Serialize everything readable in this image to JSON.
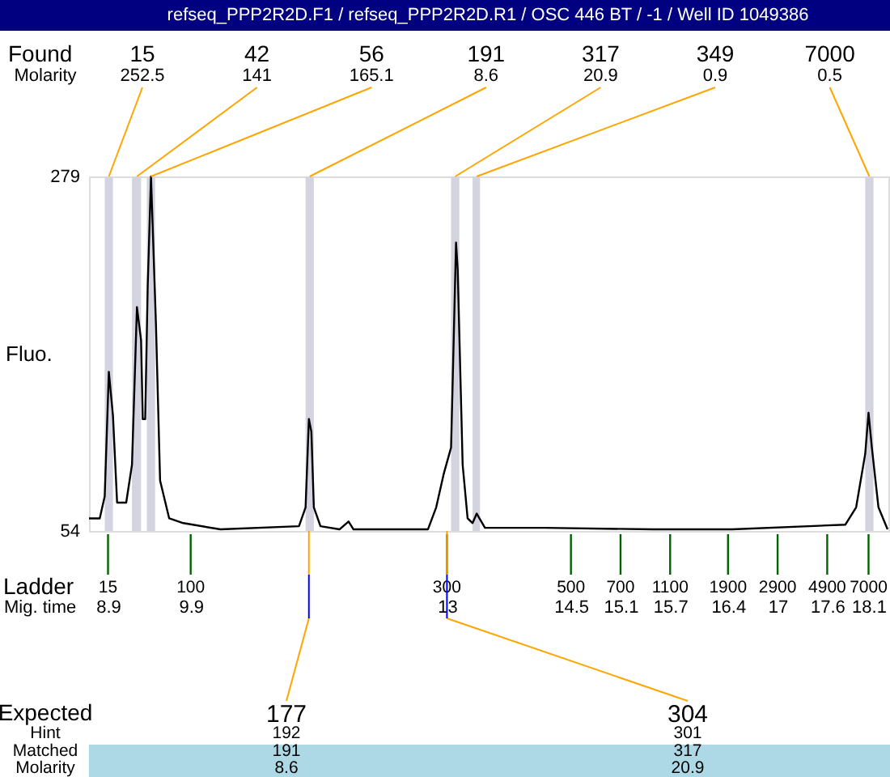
{
  "chart_data": {
    "type": "line",
    "title": "refseq_PPP2R2D.F1 / refseq_PPP2R2D.R1 / OSC 446 BT / -1 / Well ID 1049386",
    "xlabel": "Mig. time",
    "ylabel": "Fluo.",
    "xlim": [
      8.67,
      18.34
    ],
    "ylim": [
      54,
      279
    ],
    "yticks": [
      54,
      279
    ],
    "xticks": [
      8.9,
      9.9,
      13,
      14.5,
      15.1,
      15.7,
      16.4,
      17,
      17.6,
      18.1
    ],
    "series": [
      {
        "color": "#000000",
        "x": [
          8.67,
          8.8,
          8.86,
          8.91,
          8.96,
          9.01,
          9.12,
          9.19,
          9.25,
          9.3,
          9.32,
          9.35,
          9.38,
          9.42,
          9.48,
          9.53,
          9.64,
          9.81,
          10.26,
          11.21,
          11.29,
          11.33,
          11.36,
          11.39,
          11.47,
          11.7,
          11.81,
          11.87,
          12.77,
          12.87,
          12.96,
          13.05,
          13.11,
          13.13,
          13.19,
          13.25,
          13.31,
          13.36,
          13.46,
          14.18,
          15.48,
          16.45,
          17.82,
          17.95,
          18.06,
          18.1,
          18.14,
          18.22,
          18.33
        ],
        "values": [
          62,
          62,
          76,
          155,
          127,
          72,
          72,
          96,
          196,
          175,
          125,
          125,
          209,
          279,
          185,
          86,
          62,
          59,
          55,
          57,
          69,
          125,
          117,
          69,
          57,
          55,
          60,
          55,
          55,
          69,
          90,
          107,
          237,
          220,
          96,
          62,
          59,
          65,
          56,
          56,
          55,
          55,
          58,
          69,
          103,
          129,
          107,
          69,
          55
        ]
      }
    ],
    "bands": [
      {
        "axis": "x",
        "from": 8.86,
        "to": 8.96,
        "label": "15",
        "color": "#d4d4e0"
      },
      {
        "axis": "x",
        "from": 9.19,
        "to": 9.3,
        "label": "42",
        "color": "#d4d4e0"
      },
      {
        "axis": "x",
        "from": 9.37,
        "to": 9.47,
        "label": "56",
        "color": "#d4d4e0"
      },
      {
        "axis": "x",
        "from": 11.29,
        "to": 11.39,
        "label": "191",
        "color": "#d4d4e0"
      },
      {
        "axis": "x",
        "from": 13.05,
        "to": 13.15,
        "label": "317",
        "color": "#d4d4e0"
      },
      {
        "axis": "x",
        "from": 13.31,
        "to": 13.4,
        "label": "349",
        "color": "#d4d4e0"
      },
      {
        "axis": "x",
        "from": 18.06,
        "to": 18.16,
        "label": "7000",
        "color": "#d4d4e0"
      }
    ],
    "annotations": [
      "Found",
      "Molarity",
      {
        "text": "252.5",
        "x": 8.91,
        "y": 279
      },
      {
        "text": "141",
        "x": 9.25,
        "y": 279
      },
      {
        "text": "165.1",
        "x": 9.42,
        "y": 279
      },
      {
        "text": "8.6",
        "x": 11.34,
        "y": 279
      },
      {
        "text": "20.9",
        "x": 13.1,
        "y": 279
      },
      {
        "text": "0.9",
        "x": 13.36,
        "y": 279
      },
      {
        "text": "0.5",
        "x": 18.11,
        "y": 279
      },
      "Ladder",
      "15",
      "100",
      "300",
      "500",
      "700",
      "1100",
      "1900",
      "2900",
      "4900",
      "7000",
      "Expected",
      "Hint",
      "Matched",
      "Molarity",
      {
        "text": "177",
        "x": 11.33
      },
      "192",
      "191",
      "8.6",
      {
        "text": "304",
        "x": 13.0
      },
      "301",
      "317",
      "20.9"
    ],
    "grid": false,
    "legend": false
  }
}
